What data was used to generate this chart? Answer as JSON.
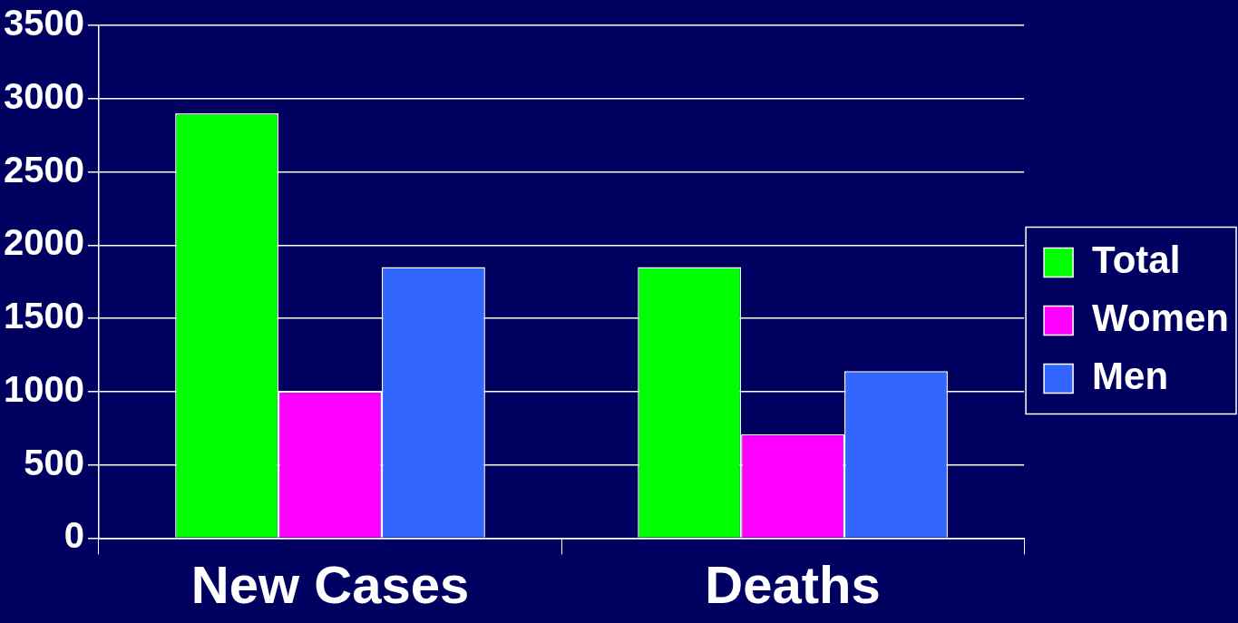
{
  "chart_data": {
    "type": "bar",
    "categories": [
      "New Cases",
      "Deaths"
    ],
    "series": [
      {
        "name": "Total",
        "color": "#00ff00",
        "values": [
          2900,
          1850
        ]
      },
      {
        "name": "Women",
        "color": "#ff00ff",
        "values": [
          1000,
          710
        ]
      },
      {
        "name": "Men",
        "color": "#3366ff",
        "values": [
          1850,
          1140
        ]
      }
    ],
    "ylim": [
      0,
      3500
    ],
    "yticks": [
      0,
      500,
      1000,
      1500,
      2000,
      2500,
      3000,
      3500
    ],
    "grid": "y",
    "legend": "right"
  }
}
